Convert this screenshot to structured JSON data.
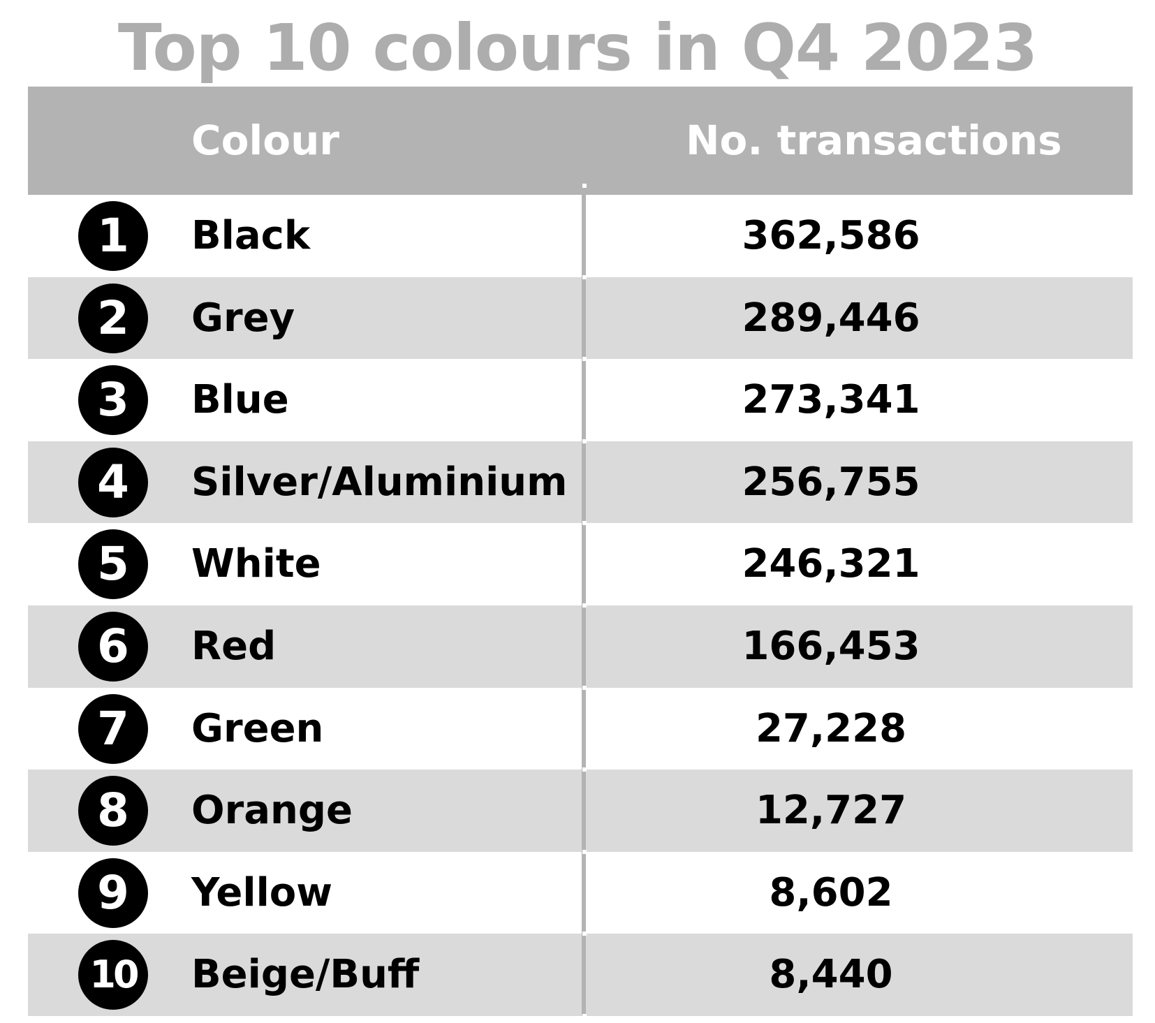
{
  "title": "Top 10 colours in Q4 2023",
  "chart_data": {
    "type": "table",
    "title": "Top 10 colours in Q4 2023",
    "columns": [
      "Colour",
      "No. transactions"
    ],
    "rows": [
      {
        "rank": "1",
        "colour": "Black",
        "transactions": "362,586"
      },
      {
        "rank": "2",
        "colour": "Grey",
        "transactions": "289,446"
      },
      {
        "rank": "3",
        "colour": "Blue",
        "transactions": "273,341"
      },
      {
        "rank": "4",
        "colour": "Silver/Aluminium",
        "transactions": "256,755"
      },
      {
        "rank": "5",
        "colour": "White",
        "transactions": "246,321"
      },
      {
        "rank": "6",
        "colour": "Red",
        "transactions": "166,453"
      },
      {
        "rank": "7",
        "colour": "Green",
        "transactions": "27,228"
      },
      {
        "rank": "8",
        "colour": "Orange",
        "transactions": "12,727"
      },
      {
        "rank": "9",
        "colour": "Yellow",
        "transactions": "8,602"
      },
      {
        "rank": "10",
        "colour": "Beige/Buff",
        "transactions": "8,440"
      }
    ],
    "colors": {
      "title": "#adadad",
      "header_bg": "#b3b3b3",
      "header_text": "#ffffff",
      "alt_row_bg": "#dadada",
      "badge_bg": "#000000"
    }
  }
}
